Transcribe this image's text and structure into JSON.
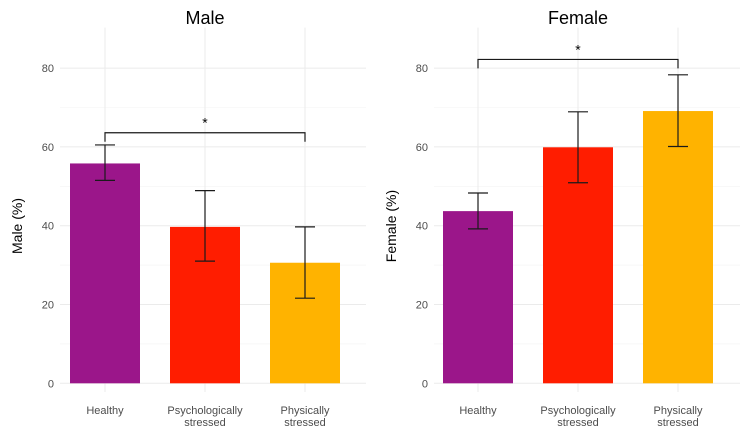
{
  "chart_data": [
    {
      "type": "bar",
      "title": "Male",
      "xlabel": "",
      "ylabel": "Male (%)",
      "categories": [
        "Healthy",
        "Psychologically stressed",
        "Physically stressed"
      ],
      "category_lines": [
        [
          "Healthy"
        ],
        [
          "Psychologically",
          "stressed"
        ],
        [
          "Physically",
          "stressed"
        ]
      ],
      "values": [
        55.8,
        39.7,
        30.6
      ],
      "error_low": [
        51.5,
        31.0,
        21.6
      ],
      "error_high": [
        60.5,
        48.9,
        39.7
      ],
      "colors": [
        "#9b168a",
        "#ff1d00",
        "#ffb300"
      ],
      "ylim": [
        0,
        89
      ],
      "yticks": [
        0,
        20,
        40,
        60,
        80
      ],
      "grid": true,
      "significance": {
        "from": "Healthy",
        "to": "Physically stressed",
        "y": 63.6,
        "label": "*"
      }
    },
    {
      "type": "bar",
      "title": "Female",
      "xlabel": "",
      "ylabel": "Female (%)",
      "categories": [
        "Healthy",
        "Psychologically stressed",
        "Physically stressed"
      ],
      "category_lines": [
        [
          "Healthy"
        ],
        [
          "Psychologically",
          "stressed"
        ],
        [
          "Physically",
          "stressed"
        ]
      ],
      "values": [
        43.7,
        59.9,
        69.1
      ],
      "error_low": [
        39.2,
        50.9,
        60.1
      ],
      "error_high": [
        48.3,
        68.9,
        78.3
      ],
      "colors": [
        "#9b168a",
        "#ff1d00",
        "#ffb300"
      ],
      "ylim": [
        0,
        89
      ],
      "yticks": [
        0,
        20,
        40,
        60,
        80
      ],
      "grid": true,
      "significance": {
        "from": "Healthy",
        "to": "Physically stressed",
        "y": 82.2,
        "label": "*"
      }
    }
  ]
}
